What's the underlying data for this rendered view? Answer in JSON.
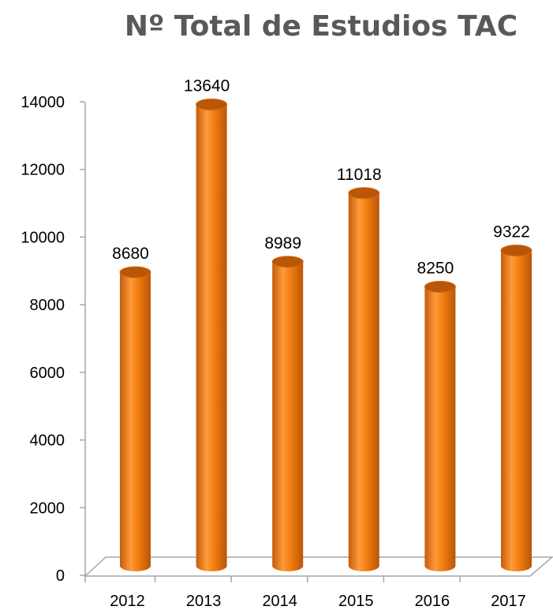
{
  "chart_data": {
    "type": "bar",
    "title": "Nº Total de Estudios TAC",
    "categories": [
      "2012",
      "2013",
      "2014",
      "2015",
      "2016",
      "2017"
    ],
    "values": [
      8680,
      13640,
      8989,
      11018,
      8250,
      9322
    ],
    "data_labels": [
      "8680",
      "13640",
      "8989",
      "11018",
      "8250",
      "9322"
    ],
    "y_ticks": [
      "0",
      "2000",
      "4000",
      "6000",
      "8000",
      "10000",
      "12000",
      "14000"
    ],
    "ylim": [
      0,
      14000
    ],
    "xlabel": "",
    "ylabel": "",
    "grid": false,
    "legend": "none",
    "style": "3d-cylinder",
    "colors": {
      "bar": "#f07d0e",
      "bar_dark": "#b8560a",
      "bar_light": "#ff9f45",
      "axis": "#a6a6a6",
      "title": "#595959"
    }
  }
}
